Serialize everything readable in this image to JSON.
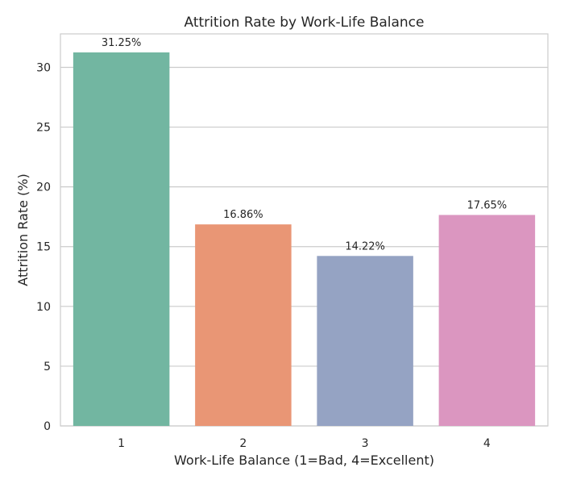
{
  "chart_data": {
    "type": "bar",
    "title": "Attrition Rate by Work-Life Balance",
    "xlabel": "Work-Life Balance (1=Bad, 4=Excellent)",
    "ylabel": "Attrition Rate (%)",
    "categories": [
      "1",
      "2",
      "3",
      "4"
    ],
    "values": [
      31.25,
      16.86,
      14.22,
      17.65
    ],
    "data_labels": [
      "31.25%",
      "16.86%",
      "14.22%",
      "17.65%"
    ],
    "colors": [
      "#72b6a1",
      "#e99675",
      "#95a3c3",
      "#db96c0"
    ],
    "ylim": [
      0,
      32.8
    ],
    "yticks": [
      0,
      5,
      10,
      15,
      20,
      25,
      30
    ],
    "grid": "horizontal",
    "legend": "none"
  }
}
